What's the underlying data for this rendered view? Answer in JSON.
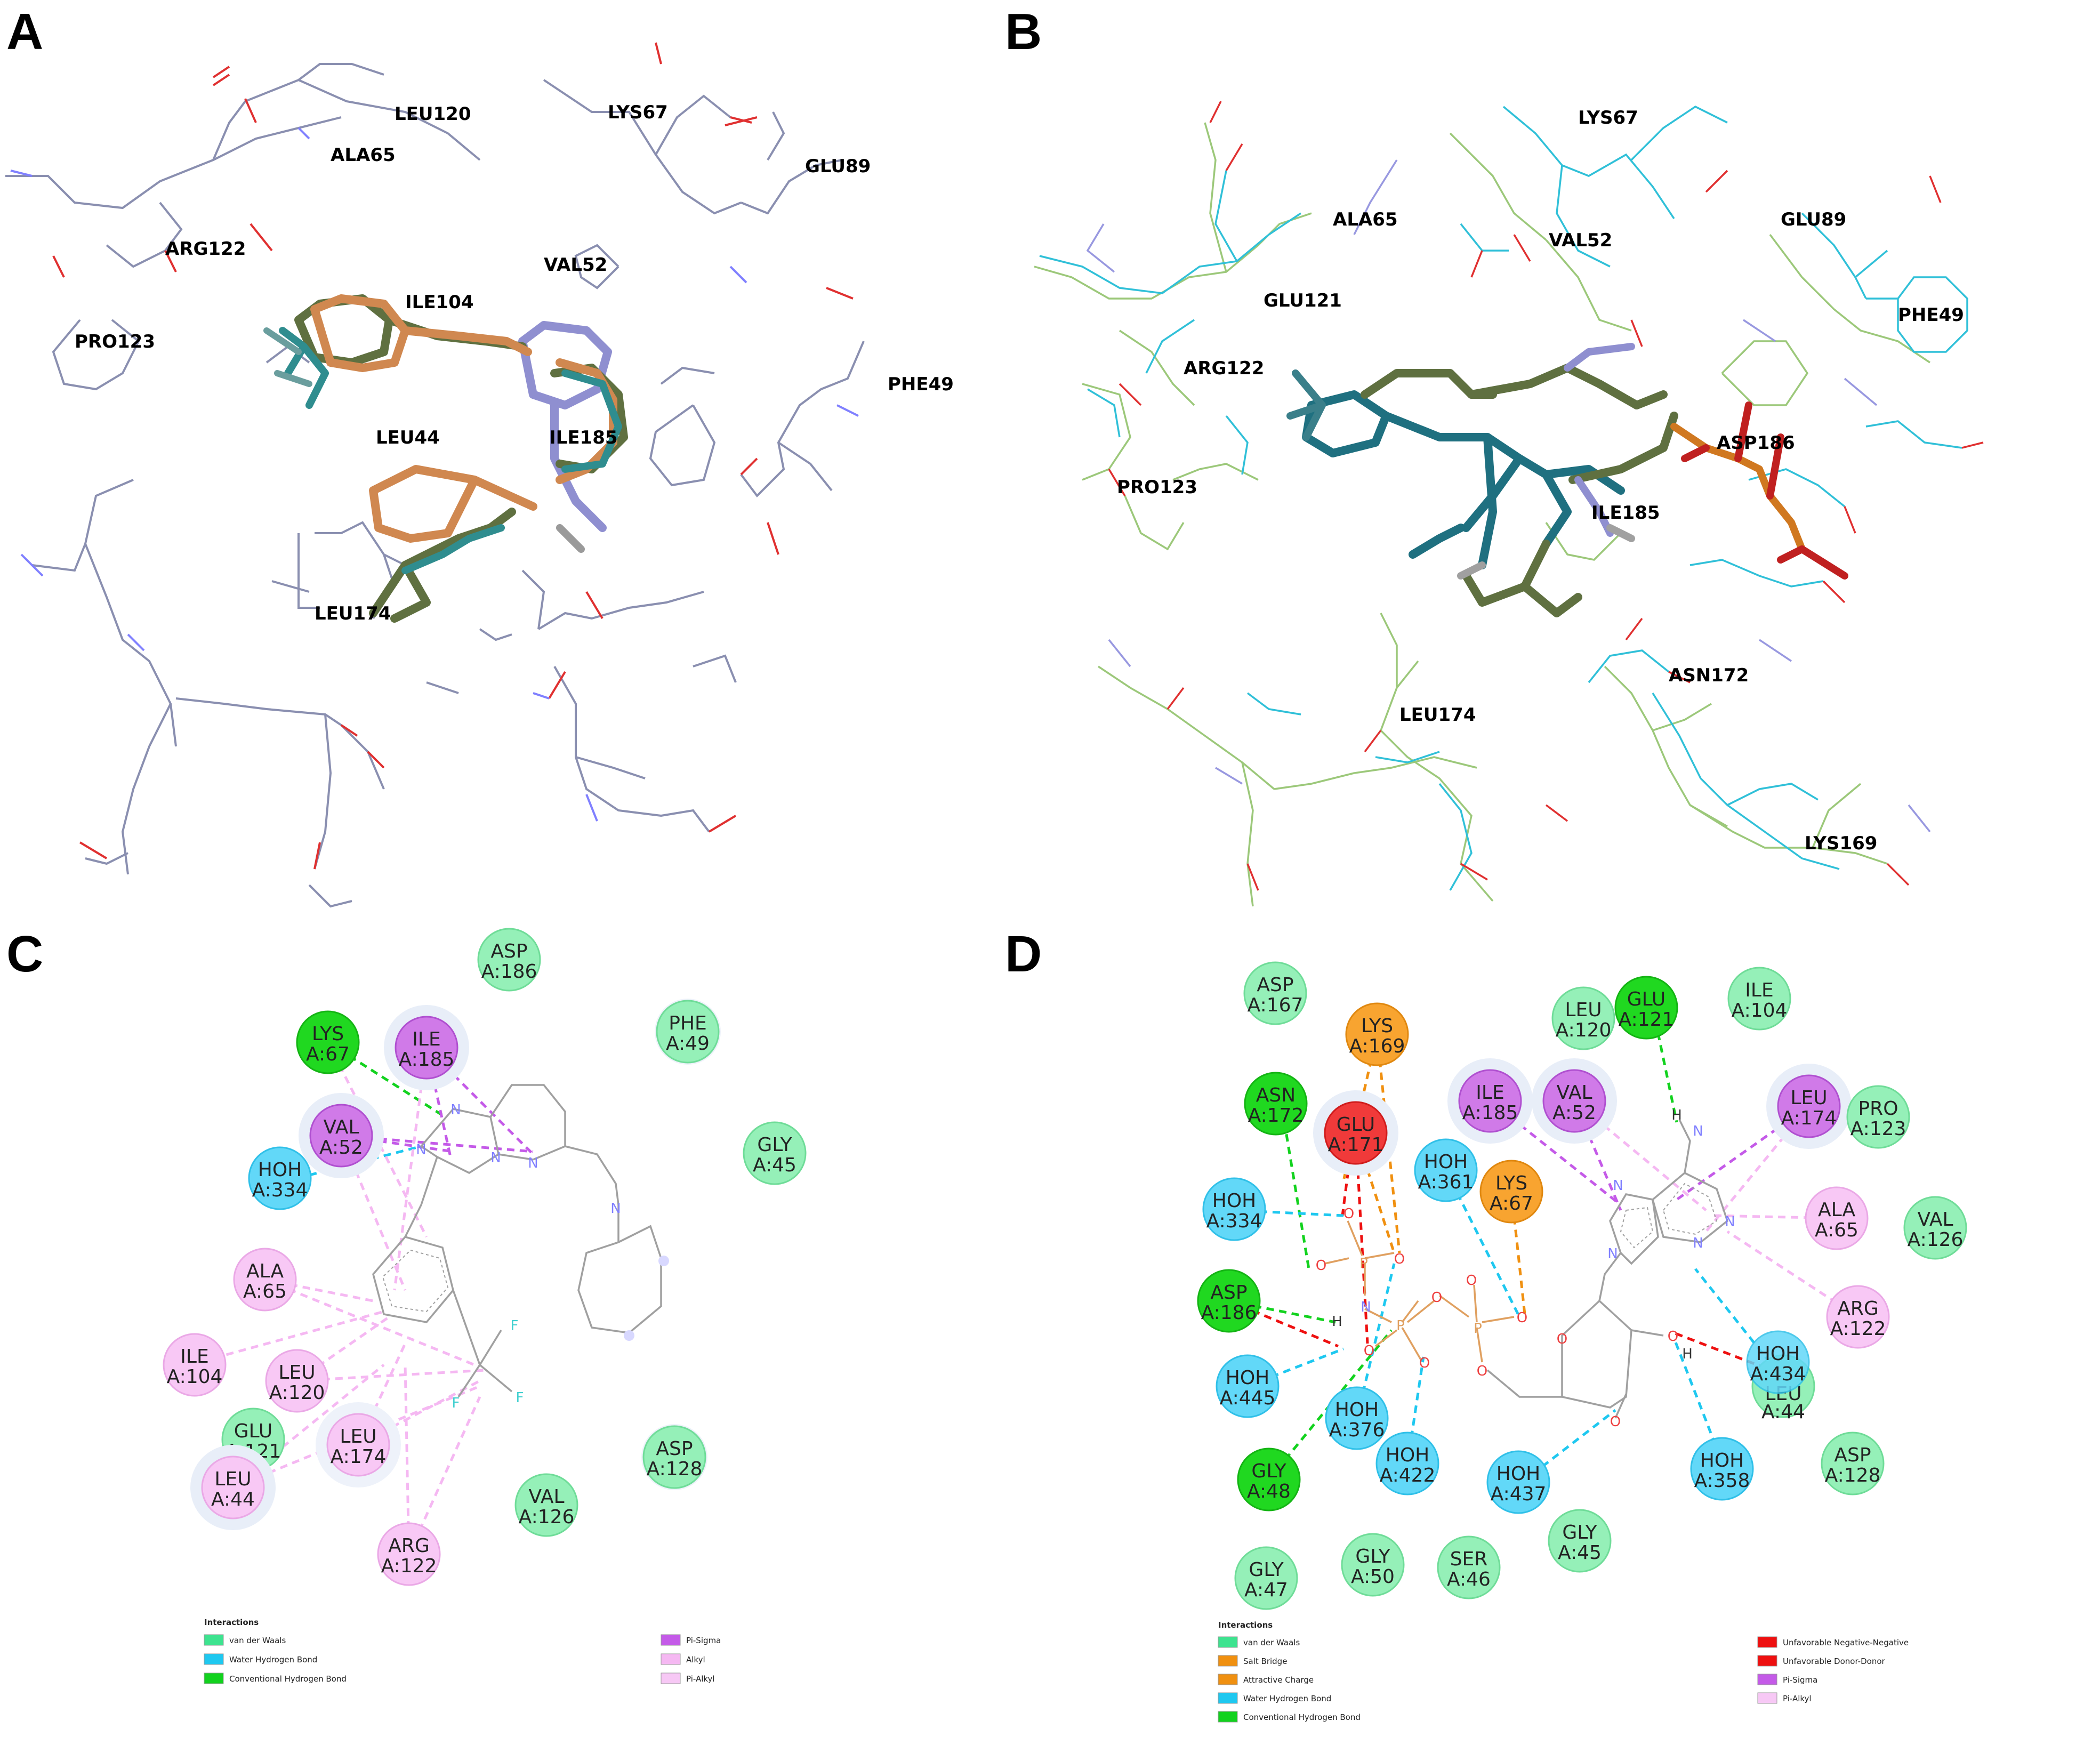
{
  "panels": [
    {
      "id": "A",
      "label": "A",
      "residues": [
        "LEU120",
        "LYS67",
        "ALA65",
        "GLU89",
        "ARG122",
        "VAL52",
        "ILE104",
        "PRO123",
        "PHE49",
        "LEU44",
        "ILE185",
        "LEU174"
      ]
    },
    {
      "id": "B",
      "label": "B",
      "residues": [
        "LYS67",
        "ALA65",
        "VAL52",
        "GLU89",
        "GLU121",
        "PHE49",
        "ARG122",
        "ASP186",
        "PRO123",
        "ILE185",
        "ASN172",
        "LEU174",
        "LYS169"
      ]
    },
    {
      "id": "C",
      "label": "C",
      "residues": [
        {
          "name": "ASP",
          "chain": "A:186",
          "type": "vdw"
        },
        {
          "name": "LYS",
          "chain": "A:67",
          "type": "hbond"
        },
        {
          "name": "ILE",
          "chain": "A:185",
          "type": "pisigma"
        },
        {
          "name": "PHE",
          "chain": "A:49",
          "type": "vdw"
        },
        {
          "name": "VAL",
          "chain": "A:52",
          "type": "pisigma"
        },
        {
          "name": "GLY",
          "chain": "A:45",
          "type": "vdw"
        },
        {
          "name": "HOH",
          "chain": "A:334",
          "type": "water"
        },
        {
          "name": "ALA",
          "chain": "A:65",
          "type": "alkyl"
        },
        {
          "name": "ILE",
          "chain": "A:104",
          "type": "alkyl"
        },
        {
          "name": "LEU",
          "chain": "A:120",
          "type": "alkyl"
        },
        {
          "name": "GLU",
          "chain": "A:121",
          "type": "vdw"
        },
        {
          "name": "LEU",
          "chain": "A:174",
          "type": "alkyl"
        },
        {
          "name": "ASP",
          "chain": "A:128",
          "type": "vdw"
        },
        {
          "name": "LEU",
          "chain": "A:44",
          "type": "alkyl"
        },
        {
          "name": "VAL",
          "chain": "A:126",
          "type": "vdw"
        },
        {
          "name": "ARG",
          "chain": "A:122",
          "type": "alkyl"
        }
      ],
      "legend": {
        "title": "Interactions",
        "items": [
          {
            "label": "van der Waals",
            "color": "#3de38f"
          },
          {
            "label": "Water Hydrogen Bond",
            "color": "#1ec8f0"
          },
          {
            "label": "Conventional Hydrogen Bond",
            "color": "#12d21e"
          },
          {
            "label": "Pi-Sigma",
            "color": "#c45ae8"
          },
          {
            "label": "Alkyl",
            "color": "#f5b8f2"
          },
          {
            "label": "Pi-Alkyl",
            "color": "#f7c8f5"
          }
        ]
      }
    },
    {
      "id": "D",
      "label": "D",
      "residues": [
        {
          "name": "ASP",
          "chain": "A:167",
          "type": "vdw"
        },
        {
          "name": "LYS",
          "chain": "A:169",
          "type": "charge"
        },
        {
          "name": "LEU",
          "chain": "A:120",
          "type": "vdw"
        },
        {
          "name": "GLU",
          "chain": "A:121",
          "type": "hbond"
        },
        {
          "name": "ILE",
          "chain": "A:104",
          "type": "vdw"
        },
        {
          "name": "ASN",
          "chain": "A:172",
          "type": "hbond"
        },
        {
          "name": "GLU",
          "chain": "A:171",
          "type": "unfav"
        },
        {
          "name": "ILE",
          "chain": "A:185",
          "type": "pisigma"
        },
        {
          "name": "VAL",
          "chain": "A:52",
          "type": "pisigma"
        },
        {
          "name": "LEU",
          "chain": "A:174",
          "type": "pisigma"
        },
        {
          "name": "PRO",
          "chain": "A:123",
          "type": "vdw"
        },
        {
          "name": "HOH",
          "chain": "A:361",
          "type": "water"
        },
        {
          "name": "HOH",
          "chain": "A:334",
          "type": "water"
        },
        {
          "name": "LYS",
          "chain": "A:67",
          "type": "charge"
        },
        {
          "name": "ALA",
          "chain": "A:65",
          "type": "alkyl"
        },
        {
          "name": "VAL",
          "chain": "A:126",
          "type": "vdw"
        },
        {
          "name": "ASP",
          "chain": "A:186",
          "type": "hbond"
        },
        {
          "name": "ARG",
          "chain": "A:122",
          "type": "alkyl"
        },
        {
          "name": "HOH",
          "chain": "A:434",
          "type": "water"
        },
        {
          "name": "HOH",
          "chain": "A:445",
          "type": "water"
        },
        {
          "name": "LEU",
          "chain": "A:44",
          "type": "vdw"
        },
        {
          "name": "HOH",
          "chain": "A:376",
          "type": "water"
        },
        {
          "name": "ASP",
          "chain": "A:128",
          "type": "vdw"
        },
        {
          "name": "HOH",
          "chain": "A:422",
          "type": "water"
        },
        {
          "name": "HOH",
          "chain": "A:437",
          "type": "water"
        },
        {
          "name": "HOH",
          "chain": "A:358",
          "type": "water"
        },
        {
          "name": "GLY",
          "chain": "A:48",
          "type": "hbond"
        },
        {
          "name": "GLY",
          "chain": "A:45",
          "type": "vdw"
        },
        {
          "name": "GLY",
          "chain": "A:47",
          "type": "vdw"
        },
        {
          "name": "GLY",
          "chain": "A:50",
          "type": "vdw"
        },
        {
          "name": "SER",
          "chain": "A:46",
          "type": "vdw"
        }
      ],
      "legend": {
        "title": "Interactions",
        "items": [
          {
            "label": "van der Waals",
            "color": "#3de38f"
          },
          {
            "label": "Salt Bridge",
            "color": "#f09010"
          },
          {
            "label": "Attractive Charge",
            "color": "#f09010"
          },
          {
            "label": "Water Hydrogen Bond",
            "color": "#1ec8f0"
          },
          {
            "label": "Conventional Hydrogen Bond",
            "color": "#12d21e"
          },
          {
            "label": "Unfavorable Negative-Negative",
            "color": "#ee1010"
          },
          {
            "label": "Unfavorable Donor-Donor",
            "color": "#ee1010"
          },
          {
            "label": "Pi-Sigma",
            "color": "#c45ae8"
          },
          {
            "label": "Pi-Alkyl",
            "color": "#f7c8f5"
          }
        ]
      }
    }
  ],
  "atoms": {
    "N": "N",
    "O": "O",
    "P": "P",
    "F": "F",
    "H": "H"
  },
  "colors": {
    "vdw": "#3de38f",
    "water": "#1ec8f0",
    "hbond": "#12d21e",
    "pisigma": "#c45ae8",
    "alkyl": "#f7c8f5",
    "charge": "#f09010",
    "unfav": "#ee1010",
    "ligand_orange": "#d08850",
    "ligand_olive": "#5f7040",
    "ligand_teal": "#1f7080",
    "ligand_lavender": "#8f8fd0"
  }
}
